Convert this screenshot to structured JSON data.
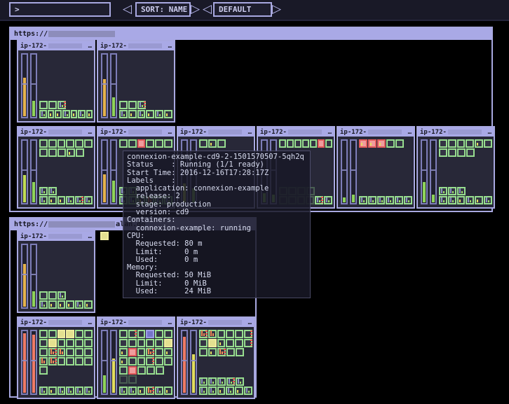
{
  "topbar": {
    "search_value": ">",
    "sort_label": "SORT: NAME",
    "theme_label": "DEFAULT",
    "prev_glyph": "◁",
    "next_glyph": "▷"
  },
  "node_defaults": {
    "name_prefix": "ip-172-",
    "title_suffix": "…"
  },
  "pod_legend": {
    "g": "running-ok",
    "y": "pending",
    "r": "error",
    "b": "terminating",
    "f": "starting-faded",
    "B": "usage-bars-grey",
    "Y": "usage-bar-yellow",
    "O": "usage-bars-orange",
    "R": "restart-indicator"
  },
  "colors": {
    "canvas": "#000000",
    "panel": "#191927",
    "frame": "#a8a8e0",
    "header_fill": "#a9a9e6",
    "header_text": "#14141e",
    "node_bg": "#282838",
    "redact": "#8d8dbb",
    "gauge_outline": "#7d7db8",
    "orange": "#e6b34d",
    "green": "#8fd45a",
    "yellow": "#e3de5e",
    "red": "#ef7b66",
    "yellowgreen": "#c2dd55",
    "pod_green": "#97dd8f",
    "pod_yellow": "#efec9e",
    "pod_red": "#e25c5c",
    "pod_blue": "#9f9fe8",
    "bar_grey": "#8a93c0",
    "bar_yellow": "#e3de5e",
    "bar_green": "#9fe06a",
    "bar_orange": "#f08c55",
    "restart": "#f05050"
  },
  "clusters": [
    {
      "url_prefix": "https://",
      "url_suffix": "",
      "node_rows": [
        [
          {
            "cpu": {
              "pct": 62,
              "color": "orange"
            },
            "mem": {
              "pct": 25,
              "color": "green"
            },
            "top_rows": [],
            "bottom_rows": [
              [
                "g",
                "g",
                "gBR"
              ],
              [
                "gB",
                "gY",
                "gY",
                "gB",
                "gY",
                "gB",
                "gY"
              ]
            ]
          },
          {
            "cpu": {
              "pct": 60,
              "color": "orange"
            },
            "mem": {
              "pct": 30,
              "color": "green"
            },
            "top_rows": [],
            "bottom_rows": [
              [
                "g",
                "g",
                "gBR"
              ],
              [
                "gB",
                "gY",
                "gB",
                "gY",
                "gB",
                "gY"
              ]
            ]
          }
        ],
        [
          {
            "cpu": {
              "pct": 44,
              "color": "yellowgreen"
            },
            "mem": {
              "pct": 33,
              "color": "green"
            },
            "top_rows": [
              [
                "g",
                "g",
                "g",
                "g",
                "g",
                "g"
              ],
              [
                "g",
                "g",
                "g",
                "gY",
                "g"
              ]
            ],
            "bottom_rows": [
              [
                "gB",
                "gB"
              ],
              [
                "gB",
                "gY",
                "gY",
                "gB",
                "gBR",
                "gB"
              ]
            ]
          },
          {
            "cpu": {
              "pct": 45,
              "color": "orange"
            },
            "mem": {
              "pct": 35,
              "color": "green"
            },
            "top_rows": [
              [
                "g",
                "g",
                "r",
                "g",
                "g",
                "g"
              ]
            ],
            "bottom_rows": [
              [
                "gB",
                "gB"
              ],
              [
                "gB",
                "gB",
                "gY",
                "gO",
                "gB",
                "gB"
              ]
            ]
          },
          {
            "cpu": {
              "pct": 30,
              "color": "yellowgreen"
            },
            "mem": {
              "pct": 22,
              "color": "green"
            },
            "top_rows": [
              [
                "g",
                "gY",
                "g"
              ]
            ],
            "bottom_rows": []
          },
          {
            "cpu": {
              "pct": 15,
              "color": "green"
            },
            "mem": {
              "pct": 12,
              "color": "green"
            },
            "top_rows": [
              [
                "g",
                "g",
                "g",
                "g",
                "g",
                "r",
                "g"
              ]
            ],
            "bottom_rows": [
              [
                "f",
                "f",
                "f",
                "f"
              ],
              [
                "f",
                "f",
                "f",
                "f",
                "gBR",
                "gB"
              ]
            ]
          },
          {
            "cpu": {
              "pct": 8,
              "color": "green"
            },
            "mem": {
              "pct": 12,
              "color": "green"
            },
            "top_rows": [
              [
                "rY",
                "rY",
                "rY",
                "g",
                "g"
              ]
            ],
            "bottom_rows": [
              [
                "gB",
                "gB",
                "gB",
                "gB",
                "gB",
                "gB"
              ]
            ]
          },
          {
            "cpu": {
              "pct": 33,
              "color": "green"
            },
            "mem": {
              "pct": 12,
              "color": "green"
            },
            "top_rows": [
              [
                "g",
                "g",
                "g",
                "g",
                "gY",
                "g"
              ],
              [
                "g",
                "g",
                "g",
                "g"
              ]
            ],
            "bottom_rows": [
              [
                "gB",
                "gB",
                "gB"
              ],
              [
                "gB",
                "gB",
                "gY",
                "gB",
                "gY",
                "gB"
              ]
            ]
          }
        ]
      ],
      "unassigned_pods": []
    },
    {
      "url_prefix": "https://",
      "url_suffix": "alan.do",
      "node_rows": [
        [
          {
            "cpu": {
              "pct": 68,
              "color": "orange"
            },
            "mem": {
              "pct": 25,
              "color": "green"
            },
            "top_rows": [],
            "bottom_rows": [
              [
                "g",
                "g",
                "gB"
              ],
              [
                "gB",
                "gY",
                "gY",
                "gY",
                "gB",
                "gY"
              ]
            ]
          }
        ],
        [
          {
            "cpu": {
              "pct": 96,
              "color": "red"
            },
            "mem": {
              "pct": 93,
              "color": "red"
            },
            "top_rows": [
              [
                "g",
                "g",
                "y",
                "y",
                "g",
                "g"
              ],
              [
                "g",
                "y",
                "g",
                "g",
                "g",
                "g"
              ],
              [
                "g",
                "gOR",
                "gO",
                "g",
                "g",
                "g"
              ],
              [
                "gO",
                "gOR",
                "g",
                "g",
                "g",
                "g"
              ],
              [
                "g"
              ]
            ],
            "bottom_rows": [
              [
                "gB",
                "gY",
                "gB",
                "gB",
                "gB",
                "gB"
              ]
            ]
          },
          {
            "cpu": {
              "pct": 28,
              "color": "green"
            },
            "mem": {
              "pct": 55,
              "color": "yellow"
            },
            "top_rows": [
              [
                "g",
                "gR",
                "g",
                "b",
                "g",
                "g"
              ],
              [
                "g",
                "g",
                "g",
                "g",
                "g",
                "y"
              ],
              [
                "gY",
                "r",
                "g",
                "gOR",
                "g",
                "gY"
              ],
              [
                "gY",
                "g",
                "g",
                "gR",
                "g",
                "g"
              ],
              [
                "g",
                "r",
                "g",
                "g",
                "g"
              ],
              [
                "f",
                "f"
              ]
            ],
            "bottom_rows": [
              [
                "gB",
                "gB",
                "gY",
                "gOR",
                "gB",
                "gY"
              ]
            ]
          },
          {
            "cpu": {
              "pct": 90,
              "color": "red"
            },
            "mem": {
              "pct": 62,
              "color": "yellow"
            },
            "top_rows": [
              [
                "gOR",
                "gO",
                "g",
                "g",
                "g",
                "gR"
              ],
              [
                "g",
                "y",
                "gY",
                "g",
                "g",
                "gR"
              ],
              [
                "g",
                "gY",
                "gOR",
                "g",
                "g"
              ]
            ],
            "bottom_rows": [
              [
                "gB",
                "gB",
                "gB",
                "gBR",
                "gB"
              ],
              [
                "gB",
                "gB",
                "gY",
                "gB",
                "gY",
                "gB"
              ]
            ]
          }
        ]
      ],
      "unassigned_pods": [
        "y"
      ]
    }
  ],
  "tooltip": {
    "lines": [
      "connexion-example-cd9-2-1501570507-5qh2q",
      "Status    : Running (1/1 ready)",
      "Start Time: 2016-12-16T17:28:17Z",
      "Labels    :",
      "  application: connexion-example",
      "  release: 2",
      "  stage: production",
      "  version: cd9",
      "Containers:",
      "  connexion-example: running",
      "CPU:",
      "  Requested: 80 m",
      "  Limit:     0 m",
      "  Used:      0 m",
      "Memory:",
      "  Requested: 50 MiB",
      "  Limit:     0 MiB",
      "  Used:      24 MiB"
    ]
  }
}
